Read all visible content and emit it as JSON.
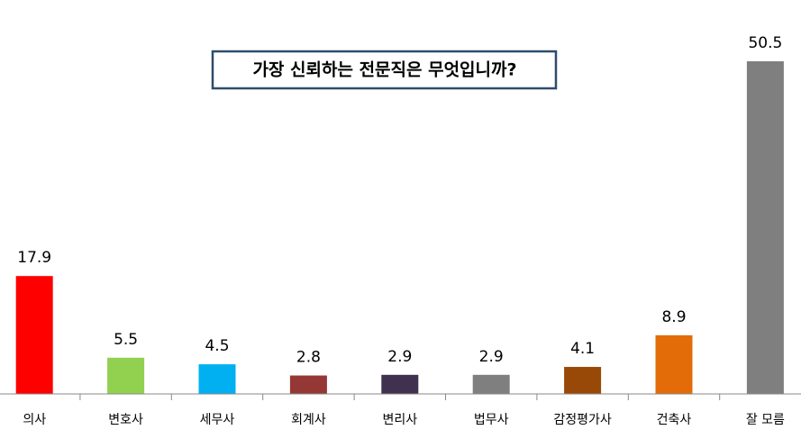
{
  "chart_data": {
    "type": "bar",
    "title": "가장 신뢰하는 전문직은 무엇입니까?",
    "categories": [
      "의사",
      "변호사",
      "세무사",
      "회계사",
      "변리사",
      "법무사",
      "감정평가사",
      "건축사",
      "잘 모름"
    ],
    "values": [
      17.9,
      5.5,
      4.5,
      2.8,
      2.9,
      2.9,
      4.1,
      8.9,
      50.5
    ],
    "colors": [
      "#ff0000",
      "#92d050",
      "#00b0f0",
      "#953735",
      "#403151",
      "#7f7f7f",
      "#984807",
      "#e36c09",
      "#7f7f7f"
    ],
    "ylim": [
      0,
      50.5
    ]
  }
}
